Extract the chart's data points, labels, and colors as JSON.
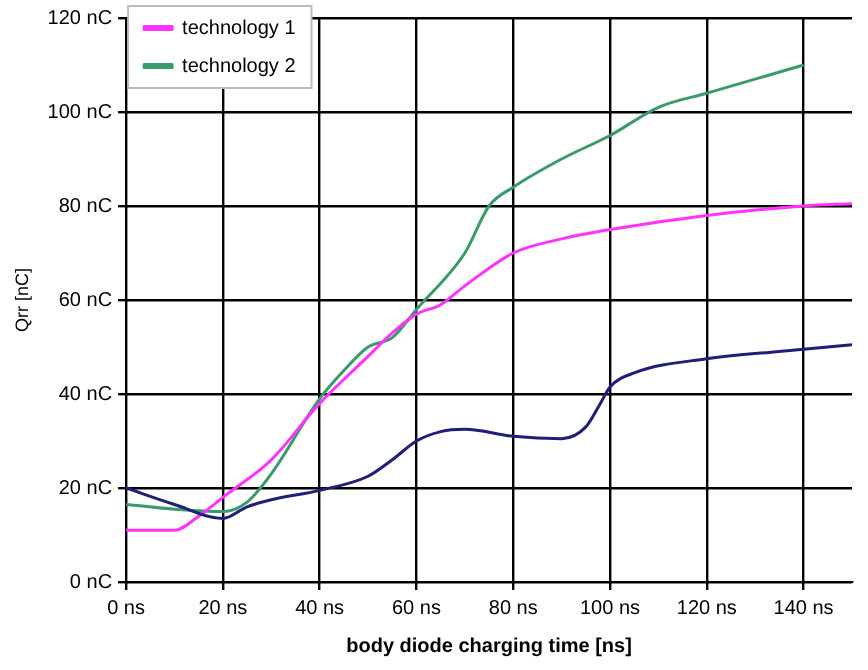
{
  "chart_data": {
    "type": "line",
    "xlabel": "body diode charging time [ns]",
    "ylabel": "Qrr [nC]",
    "xlim": [
      0,
      150
    ],
    "ylim": [
      0,
      120
    ],
    "xticks": [
      {
        "value": 0,
        "label": "0 ns"
      },
      {
        "value": 20,
        "label": "20 ns"
      },
      {
        "value": 40,
        "label": "40 ns"
      },
      {
        "value": 60,
        "label": "60 ns"
      },
      {
        "value": 80,
        "label": "80 ns"
      },
      {
        "value": 100,
        "label": "100 ns"
      },
      {
        "value": 120,
        "label": "120 ns"
      },
      {
        "value": 140,
        "label": "140 ns"
      }
    ],
    "yticks": [
      {
        "value": 0,
        "label": "0 nC"
      },
      {
        "value": 20,
        "label": "20 nC"
      },
      {
        "value": 40,
        "label": "40 nC"
      },
      {
        "value": 60,
        "label": "60 nC"
      },
      {
        "value": 80,
        "label": "80 nC"
      },
      {
        "value": 100,
        "label": "100 nC"
      },
      {
        "value": 120,
        "label": "120 nC"
      }
    ],
    "grid": true,
    "legend": "top left",
    "marker": "none",
    "line_style": "solid",
    "series": [
      {
        "color": "#1f1f7a",
        "x": [
          0,
          10,
          20,
          25,
          30,
          40,
          50,
          55,
          60,
          65,
          70,
          80,
          90,
          95,
          98,
          100,
          105,
          120,
          140,
          150
        ],
        "values": [
          20,
          16.5,
          13.5,
          16,
          17.5,
          19.5,
          22.5,
          26,
          30,
          32,
          32.5,
          31,
          30.5,
          33,
          38,
          41.5,
          44.5,
          47.5,
          49.5,
          50.5
        ]
      },
      {
        "name": "technology 1",
        "color": "#ff33ff",
        "x": [
          0,
          10,
          15,
          20,
          30,
          40,
          50,
          55,
          60,
          65,
          70,
          80,
          90,
          100,
          120,
          140,
          150
        ],
        "values": [
          11,
          11,
          14,
          18,
          26,
          38,
          48,
          53,
          57,
          59,
          63,
          70,
          73,
          75,
          78,
          80,
          80.5
        ]
      },
      {
        "name": "technology 2",
        "color": "#3a9a6a",
        "x": [
          0,
          10,
          20,
          25,
          30,
          40,
          45,
          50,
          55,
          60,
          70,
          75,
          80,
          90,
          100,
          110,
          120,
          140
        ],
        "values": [
          16.5,
          15.5,
          15,
          17,
          23,
          39,
          45,
          50,
          52,
          58,
          70,
          80,
          84,
          90,
          95,
          101,
          104,
          110
        ]
      }
    ]
  }
}
